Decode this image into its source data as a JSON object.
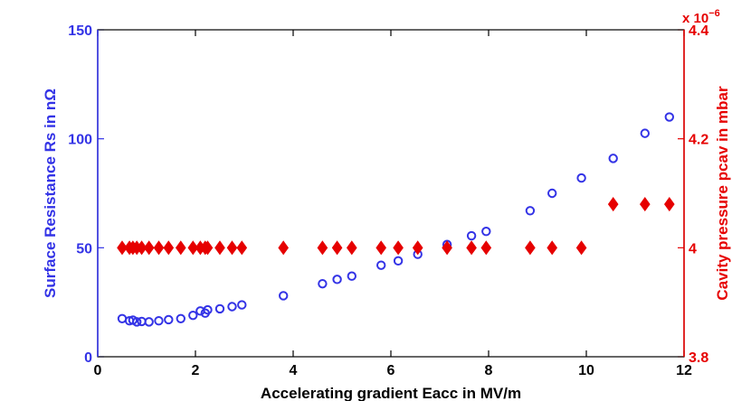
{
  "chart_data": {
    "type": "scatter",
    "title": "",
    "xlabel": "Accelerating gradient Eacc in MV/m",
    "ylabel_left": "Surface Resistance Rs in nΩ",
    "ylabel_right": "Cavity pressure pcav in mbar",
    "xlim": [
      0,
      12
    ],
    "ylim_left": [
      0,
      150
    ],
    "ylim_right": [
      3.8,
      4.4
    ],
    "right_multiplier_base": "x 10",
    "right_multiplier_exp": "−6",
    "x_ticks": [
      "0",
      "2",
      "4",
      "6",
      "8",
      "10",
      "12"
    ],
    "y_left_ticks": [
      "0",
      "50",
      "100",
      "150"
    ],
    "y_right_ticks": [
      "3.8",
      "4",
      "4.2",
      "4.4"
    ],
    "grid": false,
    "legend": "none",
    "colors": {
      "left": "#3333e6",
      "right": "#e60000"
    },
    "series": [
      {
        "axis": "left",
        "marker": "circle",
        "points": [
          [
            0.5,
            17.5
          ],
          [
            0.65,
            16.5
          ],
          [
            0.72,
            16.8
          ],
          [
            0.8,
            16.0
          ],
          [
            0.9,
            16.2
          ],
          [
            1.05,
            16.0
          ],
          [
            1.25,
            16.5
          ],
          [
            1.45,
            17.0
          ],
          [
            1.7,
            17.5
          ],
          [
            1.95,
            19.0
          ],
          [
            2.1,
            21.0
          ],
          [
            2.2,
            20.0
          ],
          [
            2.25,
            21.5
          ],
          [
            2.5,
            22.0
          ],
          [
            2.75,
            23.0
          ],
          [
            2.95,
            23.8
          ],
          [
            3.8,
            28.0
          ],
          [
            4.6,
            33.5
          ],
          [
            4.9,
            35.5
          ],
          [
            5.2,
            37.0
          ],
          [
            5.8,
            42.0
          ],
          [
            6.15,
            44.0
          ],
          [
            6.55,
            47.0
          ],
          [
            7.15,
            51.5
          ],
          [
            7.65,
            55.5
          ],
          [
            7.95,
            57.5
          ],
          [
            8.85,
            67.0
          ],
          [
            9.3,
            75.0
          ],
          [
            9.9,
            82.0
          ],
          [
            10.55,
            91.0
          ],
          [
            11.2,
            102.5
          ],
          [
            11.7,
            110.0
          ]
        ]
      },
      {
        "axis": "right",
        "marker": "diamond",
        "points": [
          [
            0.5,
            4.0
          ],
          [
            0.65,
            4.0
          ],
          [
            0.72,
            4.0
          ],
          [
            0.8,
            4.0
          ],
          [
            0.9,
            4.0
          ],
          [
            1.05,
            4.0
          ],
          [
            1.25,
            4.0
          ],
          [
            1.45,
            4.0
          ],
          [
            1.7,
            4.0
          ],
          [
            1.95,
            4.0
          ],
          [
            2.1,
            4.0
          ],
          [
            2.2,
            4.0
          ],
          [
            2.25,
            4.0
          ],
          [
            2.5,
            4.0
          ],
          [
            2.75,
            4.0
          ],
          [
            2.95,
            4.0
          ],
          [
            3.8,
            4.0
          ],
          [
            4.6,
            4.0
          ],
          [
            4.9,
            4.0
          ],
          [
            5.2,
            4.0
          ],
          [
            5.8,
            4.0
          ],
          [
            6.15,
            4.0
          ],
          [
            6.55,
            4.0
          ],
          [
            7.15,
            4.0
          ],
          [
            7.65,
            4.0
          ],
          [
            7.95,
            4.0
          ],
          [
            8.85,
            4.0
          ],
          [
            9.3,
            4.0
          ],
          [
            9.9,
            4.0
          ],
          [
            10.55,
            4.08
          ],
          [
            11.2,
            4.08
          ],
          [
            11.7,
            4.08
          ]
        ]
      }
    ]
  }
}
